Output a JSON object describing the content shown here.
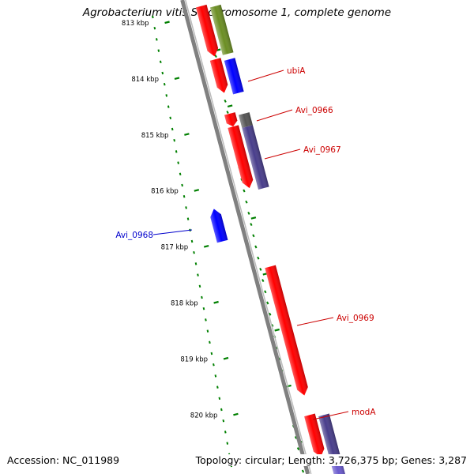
{
  "header": {
    "title": "Agrobacterium vitis S4 chromosome 1, complete genome"
  },
  "footer": {
    "accession": "Accession: NC_011989",
    "summary": "Topology: circular; Length: 3,726,375 bp; Genes: 3,287"
  },
  "ruler": {
    "unit": "kbp",
    "ticks": [
      {
        "label": "813 kbp",
        "kbp": 813
      },
      {
        "label": "814 kbp",
        "kbp": 814
      },
      {
        "label": "815 kbp",
        "kbp": 815
      },
      {
        "label": "816 kbp",
        "kbp": 816
      },
      {
        "label": "817 kbp",
        "kbp": 817
      },
      {
        "label": "818 kbp",
        "kbp": 818
      },
      {
        "label": "819 kbp",
        "kbp": 819
      },
      {
        "label": "820 kbp",
        "kbp": 820
      }
    ]
  },
  "genes": [
    {
      "name": "ubiA",
      "strand": "+",
      "start_kbp": 813.65,
      "end_kbp": 814.25,
      "color": "#ff0000"
    },
    {
      "name": "Avi_0966",
      "strand": "+",
      "start_kbp": 814.62,
      "end_kbp": 814.85,
      "color": "#ff0000"
    },
    {
      "name": "Avi_0967",
      "strand": "+",
      "start_kbp": 814.85,
      "end_kbp": 815.95,
      "color": "#ff0000"
    },
    {
      "name": "Avi_0968",
      "strand": "-",
      "start_kbp": 816.32,
      "end_kbp": 816.9,
      "color": "#0000ff"
    },
    {
      "name": "Avi_0969",
      "strand": "+",
      "start_kbp": 817.35,
      "end_kbp": 819.65,
      "color": "#ff0000"
    },
    {
      "name": "modA",
      "strand": "+",
      "start_kbp": 820.0,
      "end_kbp": 820.75,
      "color": "#ff0000"
    }
  ],
  "features": [
    {
      "type": "CDS",
      "strand": "+",
      "start_kbp": 812.7,
      "end_kbp": 813.55,
      "color": "#6b8e23"
    },
    {
      "type": "CDS",
      "strand": "+",
      "start_kbp": 813.65,
      "end_kbp": 814.25,
      "color": "#0000ff"
    },
    {
      "type": "CDS",
      "strand": "+",
      "start_kbp": 814.62,
      "end_kbp": 814.85,
      "color": "#555555"
    },
    {
      "type": "CDS",
      "strand": "+",
      "start_kbp": 814.85,
      "end_kbp": 815.95,
      "color": "#483d8b"
    },
    {
      "type": "CDS",
      "strand": "+",
      "start_kbp": 820.0,
      "end_kbp": 820.75,
      "color": "#483d8b"
    },
    {
      "type": "CDS",
      "strand": "+",
      "start_kbp": 820.8,
      "end_kbp": 821.2,
      "color": "#6a5acd"
    }
  ],
  "colors": {
    "backbone": "#808080",
    "ruler": "#008000",
    "forward_label": "#cc0000",
    "reverse_label": "#0000cc"
  }
}
